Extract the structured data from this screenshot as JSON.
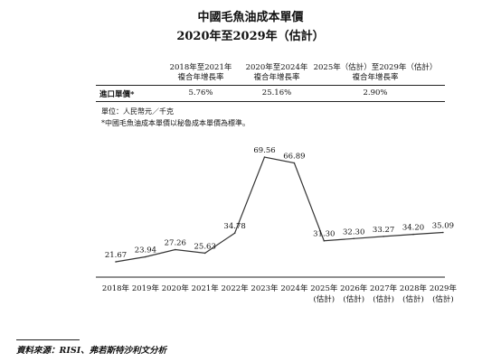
{
  "title": "中國毛魚油成本單價",
  "subtitle": "2020年至2029年（估計）",
  "cagr_table": {
    "headers": [
      {
        "line1": "2018年至2021年",
        "line2": "複合年增長率"
      },
      {
        "line1": "2020年至2024年",
        "line2": "複合年增長率"
      },
      {
        "line1": "2025年（估計）至2029年（估計）",
        "line2": "複合年增長率"
      }
    ],
    "row_label": "進口單價*",
    "values": [
      "5.76%",
      "25.16%",
      "2.90%"
    ]
  },
  "unit_note": "單位：人民幣元／千克",
  "footnote": "*中國毛魚油成本單價以秘魯成本單價為標準。",
  "source": "資料來源：RISI、弗若斯特沙利文分析",
  "chart_data": {
    "type": "line",
    "categories": [
      "2018年",
      "2019年",
      "2020年",
      "2021年",
      "2022年",
      "2023年",
      "2024年",
      "2025年",
      "2026年",
      "2027年",
      "2028年",
      "2029年"
    ],
    "category_sublabels": [
      "",
      "",
      "",
      "",
      "",
      "",
      "",
      "(估計)",
      "(估計)",
      "(估計)",
      "(估計)",
      "(估計)"
    ],
    "series": [
      {
        "values": [
          21.67,
          23.94,
          27.26,
          25.63,
          34.78,
          69.56,
          66.89,
          31.3,
          32.3,
          33.27,
          34.2,
          35.09
        ]
      }
    ],
    "value_labels": [
      "21.67",
      "23.94",
      "27.26",
      "25.63",
      "34.78",
      "69.56",
      "66.89",
      "31.30",
      "32.30",
      "33.27",
      "34.20",
      "35.09"
    ],
    "line_color": "#333333",
    "grid": false
  }
}
